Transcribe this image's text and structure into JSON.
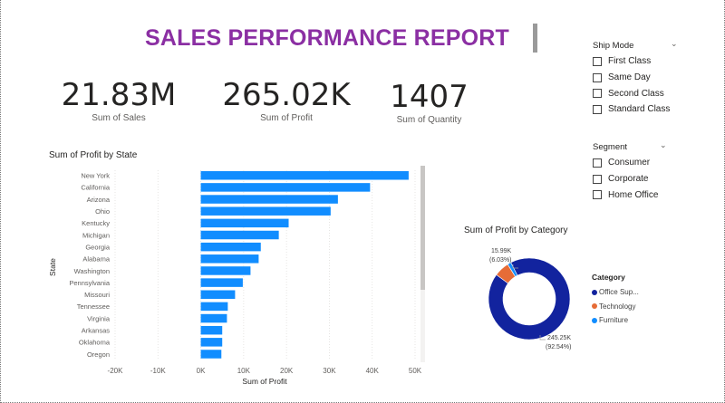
{
  "report": {
    "title": "SALES PERFORMANCE REPORT"
  },
  "kpis": [
    {
      "value": "21.83M",
      "label": "Sum of Sales"
    },
    {
      "value": "265.02K",
      "label": "Sum of Profit"
    },
    {
      "value": "1407",
      "label": "Sum of Quantity"
    }
  ],
  "slicers": {
    "ship_mode": {
      "title": "Ship Mode",
      "options": [
        "First Class",
        "Same Day",
        "Second Class",
        "Standard Class"
      ]
    },
    "segment": {
      "title": "Segment",
      "options": [
        "Consumer",
        "Corporate",
        "Home Office"
      ]
    }
  },
  "chart_data": [
    {
      "type": "bar",
      "orientation": "horizontal",
      "title": "Sum of Profit by State",
      "xlabel": "Sum of Profit",
      "ylabel": "State",
      "xlim": [
        -20000,
        50000
      ],
      "x_ticks": [
        "-20K",
        "-10K",
        "0K",
        "10K",
        "20K",
        "30K",
        "40K",
        "50K"
      ],
      "x_tick_values": [
        -20000,
        -10000,
        0,
        10000,
        20000,
        30000,
        40000,
        50000
      ],
      "grid": true,
      "color": "#118dff",
      "categories": [
        "New York",
        "California",
        "Arizona",
        "Ohio",
        "Kentucky",
        "Michigan",
        "Georgia",
        "Alabama",
        "Washington",
        "Pennsylvania",
        "Missouri",
        "Tennessee",
        "Virginia",
        "Arkansas",
        "Oklahoma",
        "Oregon"
      ],
      "values": [
        48500,
        39500,
        32000,
        30300,
        20500,
        18200,
        14000,
        13500,
        11600,
        9800,
        8000,
        6300,
        6100,
        5000,
        5000,
        4800
      ]
    },
    {
      "type": "pie",
      "subtype": "donut",
      "title": "Sum of Profit by Category",
      "legend_title": "Category",
      "legend_position": "right",
      "series": [
        {
          "name": "Office Sup...",
          "value": 245.25,
          "percent": 92.54,
          "color": "#12239e"
        },
        {
          "name": "Technology",
          "value": 15.99,
          "percent": 6.03,
          "color": "#e66c37"
        },
        {
          "name": "Furniture",
          "value": 3.78,
          "percent": 1.43,
          "color": "#118dff"
        }
      ],
      "data_labels": [
        {
          "value": "15.99K",
          "percent": "(6.03%)"
        },
        {
          "value": "245.25K",
          "percent": "(92.54%)"
        }
      ]
    }
  ]
}
